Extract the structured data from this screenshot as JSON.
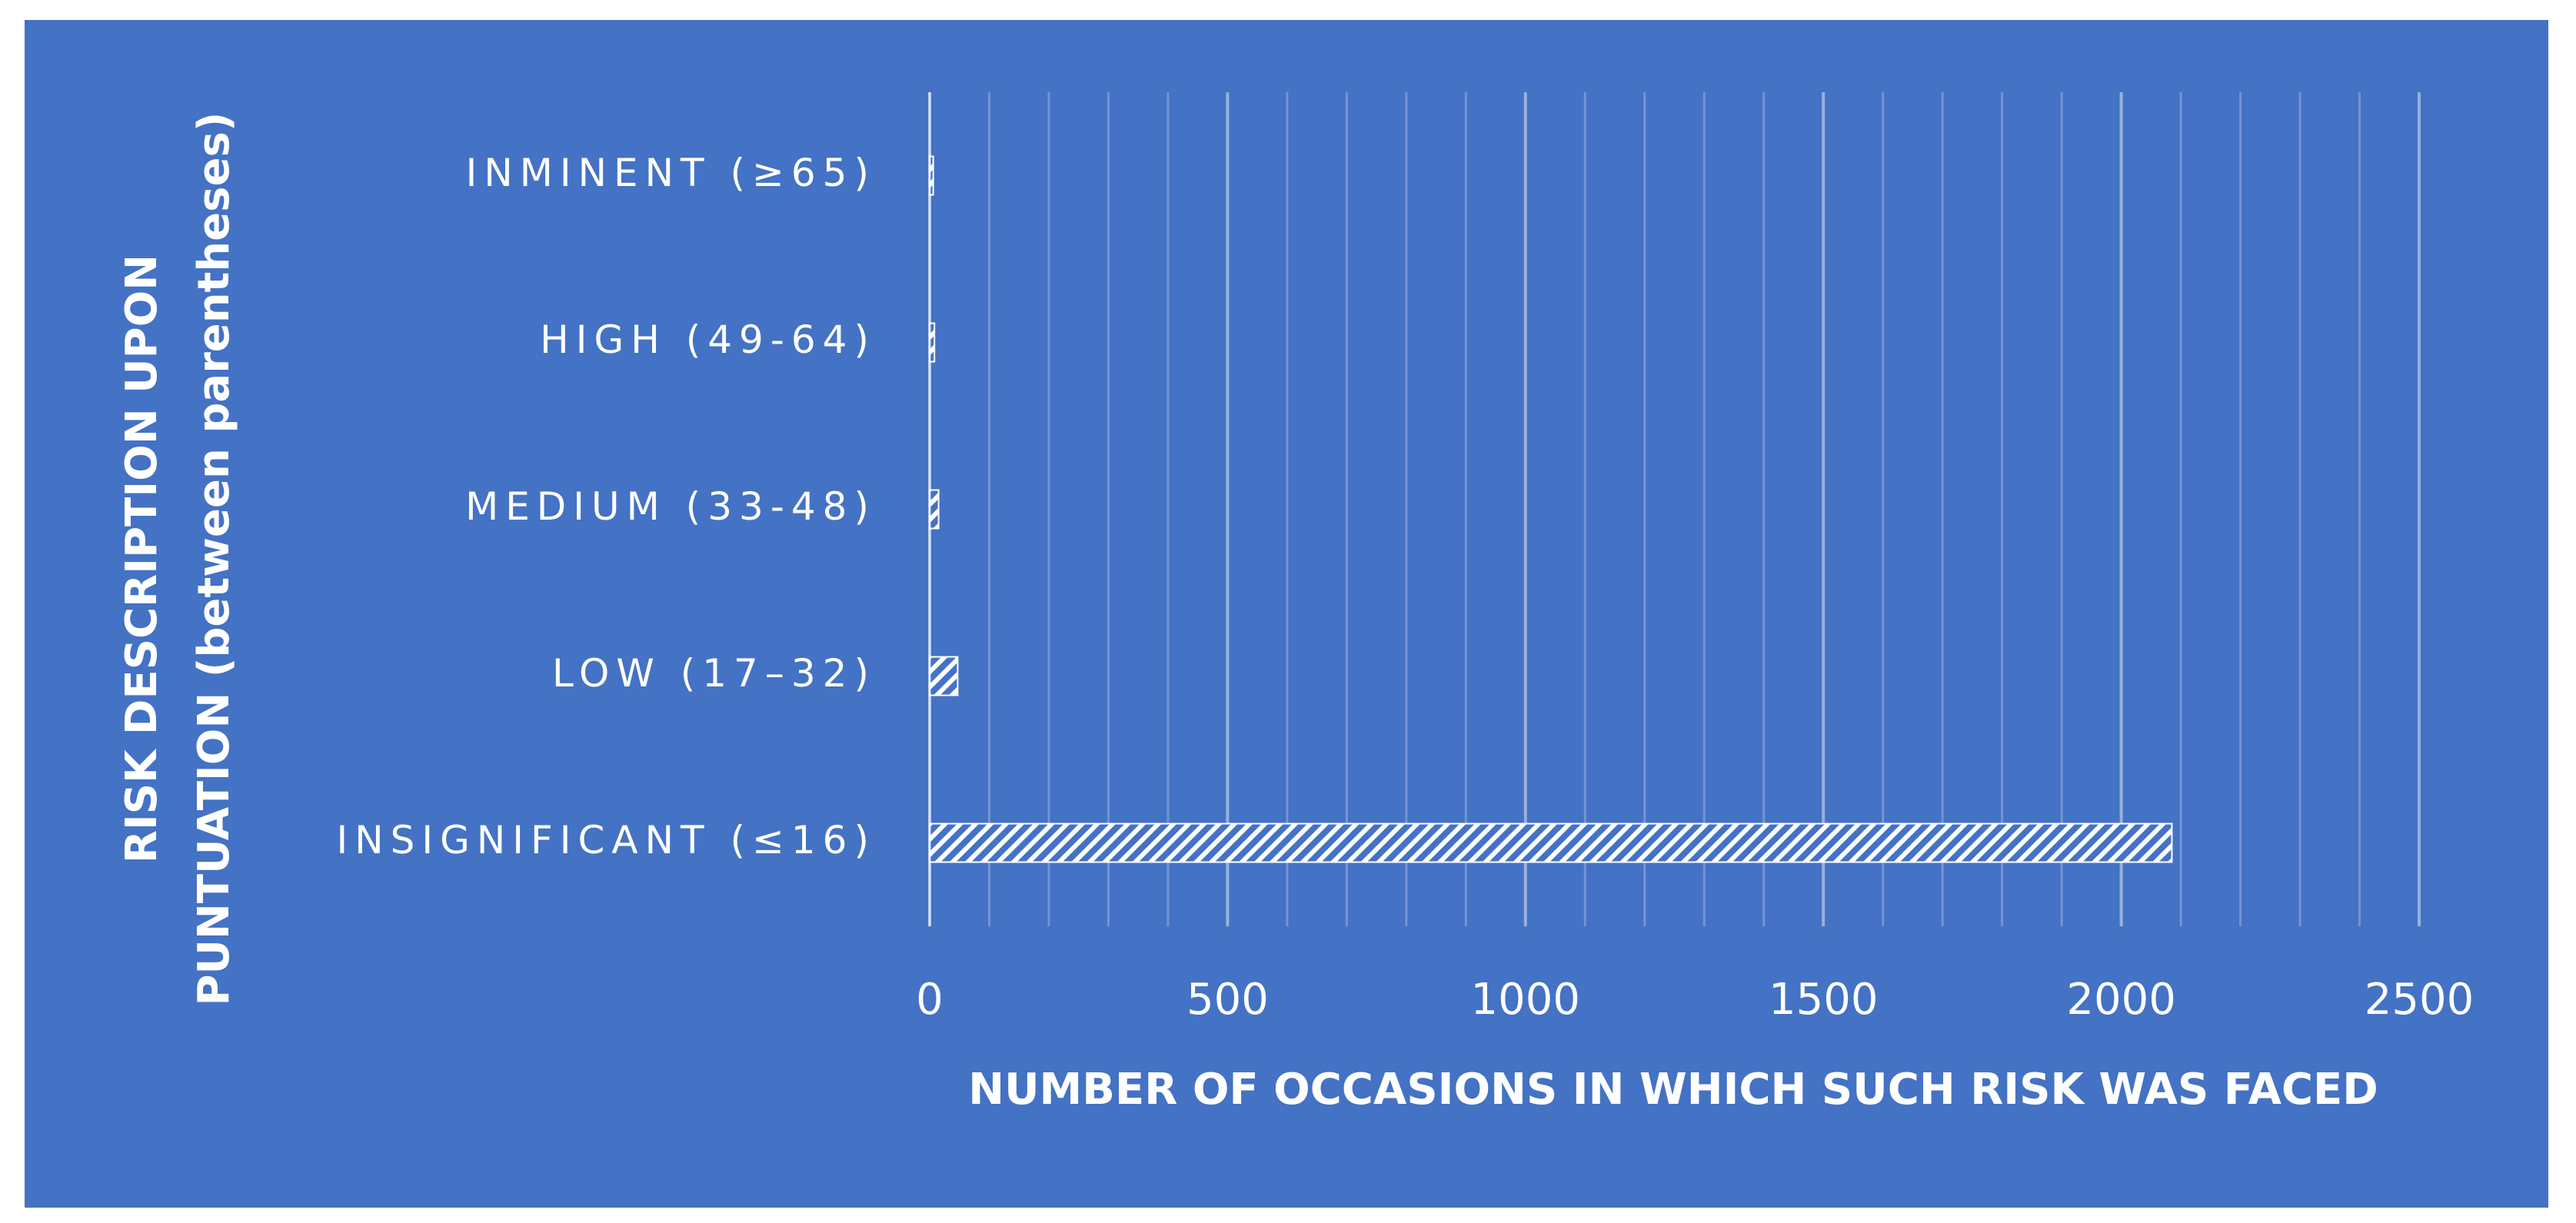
{
  "chart_data": {
    "type": "bar",
    "orientation": "horizontal",
    "xlabel": "NUMBER OF OCCASIONS IN WHICH SUCH RISK WAS FACED",
    "ylabel": [
      "RISK DESCRIPTION UPON",
      "PUNTUATION (between parentheses)"
    ],
    "categories": [
      "INSIGNIFICANT (≤16)",
      "LOW (17–32)",
      "MEDIUM (33-48)",
      "HIGH (49-64)",
      "INMINENT (≥65)"
    ],
    "values": [
      2085,
      47,
      15,
      8,
      6
    ],
    "color": "#ffffff",
    "background": "#4472c4",
    "hatch": true,
    "xlim": [
      0,
      2500
    ],
    "xticks": [
      0,
      500,
      1000,
      1500,
      2000,
      2500
    ],
    "xminor_ticks": [
      100,
      200,
      300,
      400,
      600,
      700,
      800,
      900,
      1100,
      1200,
      1300,
      1400,
      1600,
      1700,
      1800,
      1900,
      2100,
      2200,
      2300,
      2400
    ],
    "grid": true
  }
}
